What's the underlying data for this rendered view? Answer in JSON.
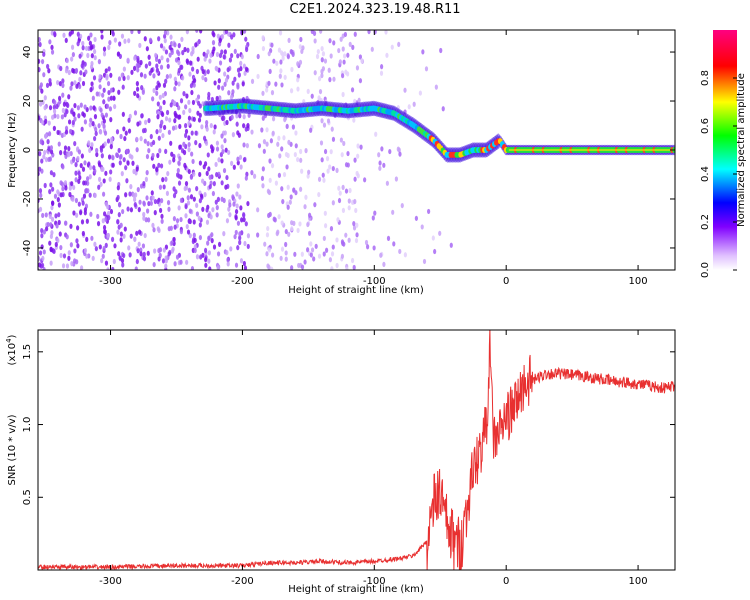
{
  "title": "C2E1.2024.323.19.48.R11",
  "chart_data": [
    {
      "type": "heatmap",
      "title": "",
      "xlabel": "Height of straight line (km)",
      "ylabel": "Frequency (Hz)",
      "xlim": [
        -355,
        128
      ],
      "ylim": [
        -49,
        49
      ],
      "xticks": [
        -300,
        -200,
        -100,
        0,
        100
      ],
      "yticks": [
        -40,
        -20,
        0,
        20,
        40
      ],
      "colorbar": {
        "label": "Normalized spectral amplitude",
        "range": [
          0,
          1
        ],
        "ticks": [
          0.0,
          0.2,
          0.4,
          0.6,
          0.8
        ],
        "colormap": [
          "#ffffff",
          "#e0c0ff",
          "#8000ff",
          "#0000ff",
          "#00ffff",
          "#00ff00",
          "#ffff00",
          "#ff0000",
          "#ff0080"
        ]
      },
      "ridge": {
        "x": [
          -225,
          -200,
          -180,
          -160,
          -140,
          -120,
          -100,
          -85,
          -70,
          -55,
          -45,
          -35,
          -25,
          -15,
          -5,
          0,
          10,
          128
        ],
        "y": [
          17,
          18,
          17,
          16,
          17,
          16,
          17,
          15,
          10,
          4,
          -2,
          -2,
          0,
          0,
          4,
          0,
          0,
          0
        ]
      }
    },
    {
      "type": "line",
      "title": "",
      "xlabel": "Height of straight line (km)",
      "ylabel": "SNR (10 * v/v)",
      "scale_label": "(x10",
      "scale_exp": "4",
      "scale_close": ")",
      "xlim": [
        -355,
        128
      ],
      "ylim": [
        0,
        1.65
      ],
      "xticks": [
        -300,
        -200,
        -100,
        0,
        100
      ],
      "yticks": [
        0.5,
        1.0,
        1.5
      ],
      "series": [
        {
          "color": "#e83030",
          "x": [
            -355,
            -300,
            -250,
            -200,
            -180,
            -160,
            -140,
            -120,
            -100,
            -80,
            -70,
            -60,
            -55,
            -50,
            -45,
            -40,
            -35,
            -30,
            -25,
            -20,
            -15,
            -12,
            -10,
            -5,
            0,
            5,
            10,
            15,
            20,
            30,
            40,
            60,
            80,
            100,
            120,
            128
          ],
          "y": [
            0.02,
            0.02,
            0.03,
            0.03,
            0.05,
            0.05,
            0.06,
            0.05,
            0.06,
            0.08,
            0.1,
            0.2,
            0.45,
            0.55,
            0.3,
            0.2,
            0.15,
            0.4,
            0.7,
            0.8,
            1.0,
            1.55,
            0.9,
            0.95,
            1.05,
            1.1,
            1.2,
            1.3,
            1.3,
            1.35,
            1.35,
            1.33,
            1.3,
            1.28,
            1.25,
            1.27
          ]
        }
      ]
    }
  ]
}
